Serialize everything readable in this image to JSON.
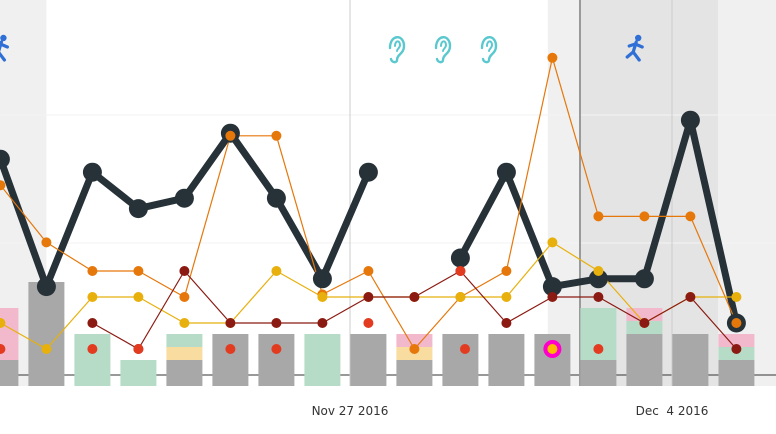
{
  "chart_data": {
    "type": "line",
    "x_start": "2016-11-19",
    "x_end": "2016-12-11",
    "ylim": [
      0,
      100
    ],
    "xticks": [
      {
        "date": "2016-11-27",
        "label": "Nov 27 2016"
      },
      {
        "date": "2016-12-04",
        "label": "Dec  4 2016"
      }
    ],
    "shaded_bands": [
      {
        "from": "2016-11-19",
        "to": "2016-11-20.4",
        "tone": "light"
      },
      {
        "from": "2016-12-01.3",
        "to": "2016-12-02",
        "tone": "light"
      },
      {
        "from": "2016-12-02",
        "to": "2016-12-05",
        "tone": "medium"
      },
      {
        "from": "2016-12-05",
        "to": "2016-12-07",
        "tone": "light"
      },
      {
        "from": "2016-12-07",
        "to": "2016-12-09",
        "tone": "medium"
      },
      {
        "from": "2016-12-09",
        "to": "2016-12-11",
        "tone": "light"
      }
    ],
    "vertical_marker_date": "2016-12-02",
    "event_icons": [
      {
        "date": "2016-11-19.4",
        "icon": "runner-icon"
      },
      {
        "date": "2016-11-28.0",
        "icon": "ear-icon"
      },
      {
        "date": "2016-11-29.0",
        "icon": "ear-icon"
      },
      {
        "date": "2016-11-30.0",
        "icon": "ear-icon"
      },
      {
        "date": "2016-12-03.2",
        "icon": "runner-icon"
      }
    ],
    "bars": [
      {
        "date": "2016-11-19.4",
        "gray": 10,
        "colored": 20,
        "color": "#f2b8cc"
      },
      {
        "date": "2016-11-20.4",
        "gray": 20,
        "colored": 20,
        "color": "#a8a8a8"
      },
      {
        "date": "2016-11-21.4",
        "gray": 0,
        "colored": 20,
        "color": "#b6dcc8"
      },
      {
        "date": "2016-11-22.4",
        "gray": 0,
        "colored": 10,
        "color": "#b6dcc8"
      },
      {
        "date": "2016-11-23.4",
        "gray": 10,
        "colored": 10,
        "color": "#f8dca0",
        "top_color": "#b6dcc8"
      },
      {
        "date": "2016-11-24.4",
        "gray": 10,
        "colored": 10,
        "color": "#a8a8a8"
      },
      {
        "date": "2016-11-25.4",
        "gray": 10,
        "colored": 10,
        "color": "#a8a8a8"
      },
      {
        "date": "2016-11-26.4",
        "gray": 0,
        "colored": 20,
        "color": "#b6dcc8"
      },
      {
        "date": "2016-11-27.4",
        "gray": 10,
        "colored": 10,
        "color": "#a8a8a8"
      },
      {
        "date": "2016-11-28.4",
        "gray": 10,
        "colored": 10,
        "color": "#f8dca0",
        "top_color": "#f2b8cc"
      },
      {
        "date": "2016-11-29.4",
        "gray": 10,
        "colored": 10,
        "color": "#a8a8a8"
      },
      {
        "date": "2016-11-30.4",
        "gray": 10,
        "colored": 10,
        "color": "#a8a8a8"
      },
      {
        "date": "2016-12-01.4",
        "gray": 10,
        "colored": 10,
        "color": "#a8a8a8"
      },
      {
        "date": "2016-12-02.4",
        "gray": 10,
        "colored": 20,
        "color": "#b6dcc8"
      },
      {
        "date": "2016-12-03.4",
        "gray": 20,
        "colored": 10,
        "color": "#b6dcc8",
        "top_color": "#f2b8cc"
      },
      {
        "date": "2016-12-04.4",
        "gray": 10,
        "colored": 10,
        "color": "#a8a8a8"
      },
      {
        "date": "2016-12-05.4",
        "gray": 10,
        "colored": 10,
        "color": "#b6dcc8",
        "top_color": "#f2b8cc"
      }
    ],
    "series": [
      {
        "color": "#263238",
        "style": "thick",
        "segments": [
          [
            [
              "2016-11-19.0",
              79
            ],
            [
              "2016-11-19.4",
              83
            ],
            [
              "2016-11-20.4",
              34
            ],
            [
              "2016-11-21.4",
              78
            ],
            [
              "2016-11-22.4",
              64
            ],
            [
              "2016-11-23.4",
              68
            ],
            [
              "2016-11-24.4",
              93
            ],
            [
              "2016-11-25.4",
              68
            ],
            [
              "2016-11-26.4",
              37
            ],
            [
              "2016-11-27.4",
              78
            ]
          ],
          [
            [
              "2016-11-29.4",
              45
            ],
            [
              "2016-11-30.4",
              78
            ],
            [
              "2016-12-01.4",
              34
            ],
            [
              "2016-12-02.4",
              37
            ],
            [
              "2016-12-03.4",
              37
            ],
            [
              "2016-12-04.4",
              98
            ],
            [
              "2016-12-05.4",
              20
            ]
          ]
        ]
      },
      {
        "color": "#e6770b",
        "style": "thin",
        "segments": [
          [
            [
              "2016-11-19.0",
              55
            ],
            [
              "2016-11-19.4",
              73
            ],
            [
              "2016-11-20.4",
              51
            ],
            [
              "2016-11-21.4",
              40
            ],
            [
              "2016-11-22.4",
              40
            ],
            [
              "2016-11-23.4",
              30
            ],
            [
              "2016-11-24.4",
              92
            ],
            [
              "2016-11-25.4",
              92
            ],
            [
              "2016-11-26.4",
              31
            ],
            [
              "2016-11-27.4",
              40
            ],
            [
              "2016-11-28.4",
              10
            ],
            [
              "2016-11-29.4",
              30
            ],
            [
              "2016-11-30.4",
              40
            ],
            [
              "2016-12-01.4",
              122
            ],
            [
              "2016-12-02.4",
              61
            ],
            [
              "2016-12-03.4",
              61
            ],
            [
              "2016-12-04.4",
              61
            ],
            [
              "2016-12-05.4",
              20
            ]
          ]
        ]
      },
      {
        "color": "#e8b00c",
        "style": "thin",
        "segments": [
          [
            [
              "2016-11-19.0",
              30
            ],
            [
              "2016-11-19.4",
              20
            ],
            [
              "2016-11-20.4",
              10
            ],
            [
              "2016-11-21.4",
              30
            ],
            [
              "2016-11-22.4",
              30
            ],
            [
              "2016-11-23.4",
              20
            ],
            [
              "2016-11-24.4",
              20
            ],
            [
              "2016-11-25.4",
              40
            ],
            [
              "2016-11-26.4",
              30
            ],
            [
              "2016-11-27.4",
              30
            ],
            [
              "2016-11-28.4",
              30
            ],
            [
              "2016-11-29.4",
              30
            ],
            [
              "2016-11-30.4",
              30
            ],
            [
              "2016-12-01.4",
              51
            ],
            [
              "2016-12-02.4",
              40
            ],
            [
              "2016-12-03.4",
              20
            ],
            [
              "2016-12-04.4",
              30
            ],
            [
              "2016-12-05.4",
              30
            ]
          ]
        ]
      },
      {
        "color": "#8b1a12",
        "style": "thin",
        "segments": [
          [
            [
              "2016-11-21.4",
              20
            ],
            [
              "2016-11-22.4",
              10
            ],
            [
              "2016-11-23.4",
              40
            ],
            [
              "2016-11-24.4",
              20
            ],
            [
              "2016-11-25.4",
              20
            ],
            [
              "2016-11-26.4",
              20
            ],
            [
              "2016-11-27.4",
              30
            ],
            [
              "2016-11-28.4",
              30
            ],
            [
              "2016-11-29.4",
              40
            ],
            [
              "2016-11-30.4",
              20
            ],
            [
              "2016-12-01.4",
              30
            ],
            [
              "2016-12-02.4",
              30
            ],
            [
              "2016-12-03.4",
              20
            ],
            [
              "2016-12-04.4",
              30
            ],
            [
              "2016-12-05.4",
              10
            ]
          ]
        ]
      },
      {
        "color": "#e23b20",
        "style": "dots",
        "segments": [
          [
            [
              "2016-11-19.4",
              10
            ],
            [
              "2016-11-21.4",
              10
            ],
            [
              "2016-11-22.4",
              10
            ],
            [
              "2016-11-24.4",
              10
            ],
            [
              "2016-11-25.4",
              10
            ],
            [
              "2016-11-27.4",
              20
            ],
            [
              "2016-11-29.4",
              40
            ],
            [
              "2016-11-29.5",
              10
            ],
            [
              "2016-12-02.4",
              10
            ]
          ]
        ]
      }
    ],
    "highlight_point": {
      "date": "2016-12-01.4",
      "value": 10,
      "color": "#ff00cc"
    }
  }
}
